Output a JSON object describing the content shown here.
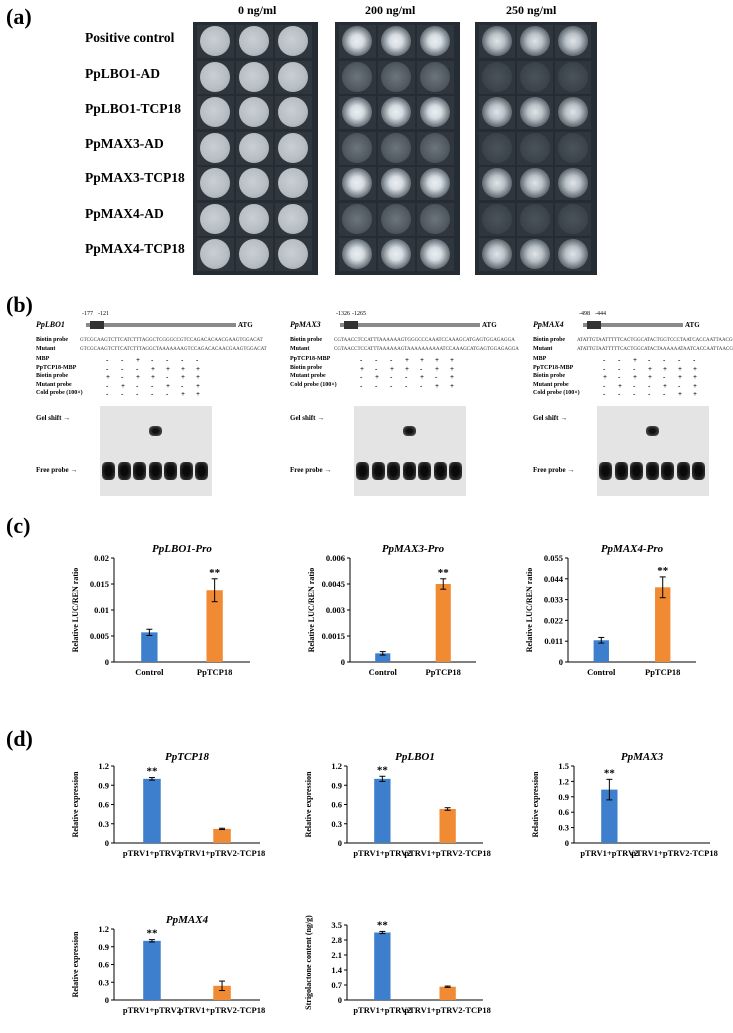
{
  "panel_labels": {
    "a": "(a)",
    "b": "(b)",
    "c": "(c)",
    "d": "(d)"
  },
  "panel_a": {
    "concentrations": [
      "0 ng/ml",
      "200 ng/ml",
      "250 ng/ml"
    ],
    "strains": [
      "Positive control",
      "PpLBO1-AD",
      "PpLBO1-TCP18",
      "PpMAX3-AD",
      "PpMAX3-TCP18",
      "PpMAX4-AD",
      "PpMAX4-TCP18"
    ]
  },
  "panel_b": {
    "blots": [
      {
        "gene": "PpLBO1",
        "pos1": "-177",
        "pos2": "-121",
        "atg": "ATG",
        "biotin_label": "Biotin probe",
        "biotin_seq": "GTCGCAAGTCTTCATCTTTAGGCTCGGGCCGTCCAGACACAACGAAGTGGACAT",
        "mutant_label": "Mutant",
        "mutant_seq": "GTCGCAAGTCTTCATCTTTAGGCTAAAAAAAGTCCAGACACAACGAAGTGGACAT",
        "rows": [
          {
            "label": "MBP",
            "signs": [
              "-",
              "-",
              "+",
              "-",
              "-",
              "-",
              "-"
            ]
          },
          {
            "label": "PpTCP18-MBP",
            "signs": [
              "-",
              "-",
              "-",
              "+",
              "+",
              "+",
              "+"
            ]
          },
          {
            "label": "Biotin probe",
            "signs": [
              "+",
              "-",
              "+",
              "+",
              "-",
              "+",
              "+"
            ]
          },
          {
            "label": "Mutant probe",
            "signs": [
              "-",
              "+",
              "-",
              "-",
              "+",
              "-",
              "+"
            ]
          },
          {
            "label": "Cold probe (100×)",
            "signs": [
              "-",
              "-",
              "-",
              "-",
              "-",
              "+",
              "+"
            ]
          }
        ],
        "gel_shift": "Gel shift",
        "free_probe": "Free probe"
      },
      {
        "gene": "PpMAX3",
        "pos1": "-1326",
        "pos2": "-1265",
        "atg": "ATG",
        "biotin_label": "Biotin probe",
        "biotin_seq": "CGTAACCTCCATTTAAAAAAGTGGGCCCAAATCCAAAGCATGAGTGGAGAGGA",
        "mutant_label": "Mutant",
        "mutant_seq": "CGTAACCTCCATTTAAAAAAGTAAAAAAAAAATCCAAAGCATGAGTGGAGAGGA",
        "rows": [
          {
            "label": "PpTCP18-MBP",
            "signs": [
              "-",
              "-",
              "-",
              "+",
              "+",
              "+",
              "+"
            ]
          },
          {
            "label": "Biotin probe",
            "signs": [
              "+",
              "-",
              "+",
              "+",
              "-",
              "+",
              "+"
            ]
          },
          {
            "label": "Mutant probe",
            "signs": [
              "-",
              "+",
              "-",
              "-",
              "+",
              "-",
              "+"
            ]
          },
          {
            "label": "Cold probe (100×)",
            "signs": [
              "-",
              "-",
              "-",
              "-",
              "-",
              "+",
              "+"
            ]
          }
        ],
        "gel_shift": "Gel shift",
        "free_probe": "Free probe"
      },
      {
        "gene": "PpMAX4",
        "pos1": "-498",
        "pos2": "-444",
        "atg": "ATG",
        "biotin_label": "Biotin probe",
        "biotin_seq": "ATATTGTAATTTTTCACTGGCATACTGGTCCCTAATCACCAATTAACGCAACAT",
        "mutant_label": "Mutant",
        "mutant_seq": "ATATTGTAATTTTTCACTGGCATACTAAAAAATAATCACCAATTAACGCAACAT",
        "rows": [
          {
            "label": "MBP",
            "signs": [
              "-",
              "-",
              "+",
              "-",
              "-",
              "-",
              "-"
            ]
          },
          {
            "label": "PpTCP18-MBP",
            "signs": [
              "-",
              "-",
              "-",
              "+",
              "+",
              "+",
              "+"
            ]
          },
          {
            "label": "Biotin probe",
            "signs": [
              "+",
              "-",
              "+",
              "+",
              "-",
              "+",
              "+"
            ]
          },
          {
            "label": "Mutant probe",
            "signs": [
              "-",
              "+",
              "-",
              "-",
              "+",
              "-",
              "+"
            ]
          },
          {
            "label": "Cold probe (100×)",
            "signs": [
              "-",
              "-",
              "-",
              "-",
              "-",
              "+",
              "+"
            ]
          }
        ],
        "gel_shift": "Gel shift",
        "free_probe": "Free probe"
      }
    ]
  },
  "chart_data": [
    {
      "panel": "c",
      "type": "bar",
      "title": "PpLBO1-Pro",
      "ylabel": "Relative LUC/REN ratio",
      "categories": [
        "Control",
        "PpTCP18"
      ],
      "values": [
        0.0057,
        0.0138
      ],
      "errors": [
        0.0006,
        0.0022
      ],
      "ylim": [
        0,
        0.02
      ],
      "yticks": [
        "0",
        "0.005",
        "0.01",
        "0.015",
        "0.02"
      ],
      "significance": [
        "",
        "**"
      ]
    },
    {
      "panel": "c",
      "type": "bar",
      "title": "PpMAX3-Pro",
      "ylabel": "Relative LUC/REN ratio",
      "categories": [
        "Control",
        "PpTCP18"
      ],
      "values": [
        0.0005,
        0.0045
      ],
      "errors": [
        0.0001,
        0.0003
      ],
      "ylim": [
        0,
        0.006
      ],
      "yticks": [
        "0",
        "0.0015",
        "0.003",
        "0.0045",
        "0.006"
      ],
      "significance": [
        "",
        "**"
      ]
    },
    {
      "panel": "c",
      "type": "bar",
      "title": "PpMAX4-Pro",
      "ylabel": "Relative LUC/REN ratio",
      "categories": [
        "Control",
        "PpTCP18"
      ],
      "values": [
        0.0115,
        0.0395
      ],
      "errors": [
        0.0015,
        0.0055
      ],
      "ylim": [
        0,
        0.055
      ],
      "yticks": [
        "0",
        "0.011",
        "0.022",
        "0.033",
        "0.044",
        "0.055"
      ],
      "significance": [
        "",
        "**"
      ]
    },
    {
      "panel": "d",
      "type": "bar",
      "title": "PpTCP18",
      "ylabel": "Relative expression",
      "categories": [
        "pTRV1+pTRV2",
        "pTRV1+pTRV2-TCP18"
      ],
      "values": [
        1.0,
        0.22
      ],
      "errors": [
        0.02,
        0.01
      ],
      "ylim": [
        0,
        1.2
      ],
      "yticks": [
        "0",
        "0.3",
        "0.6",
        "0.9",
        "1.2"
      ],
      "significance": [
        "**",
        ""
      ]
    },
    {
      "panel": "d",
      "type": "bar",
      "title": "PpLBO1",
      "ylabel": "Relative expression",
      "categories": [
        "pTRV1+pTRV2",
        "pTRV1+pTRV2-TCP18"
      ],
      "values": [
        1.0,
        0.53
      ],
      "errors": [
        0.04,
        0.02
      ],
      "ylim": [
        0,
        1.2
      ],
      "yticks": [
        "0",
        "0.3",
        "0.6",
        "0.9",
        "1.2"
      ],
      "significance": [
        "**",
        ""
      ]
    },
    {
      "panel": "d",
      "type": "bar",
      "title": "PpMAX3",
      "ylabel": "Relative expression",
      "categories": [
        "pTRV1+pTRV2",
        "pTRV1+pTRV2-TCP18"
      ],
      "values": [
        1.04,
        0.0
      ],
      "errors": [
        0.2,
        0.0
      ],
      "ylim": [
        0,
        1.5
      ],
      "yticks": [
        "0",
        "0.3",
        "0.6",
        "0.9",
        "1.2",
        "1.5"
      ],
      "significance": [
        "**",
        ""
      ]
    },
    {
      "panel": "d",
      "type": "bar",
      "title": "PpMAX4",
      "ylabel": "Relative expression",
      "categories": [
        "pTRV1+pTRV2",
        "pTRV1+pTRV2-TCP18"
      ],
      "values": [
        1.0,
        0.24
      ],
      "errors": [
        0.02,
        0.08
      ],
      "ylim": [
        0,
        1.2
      ],
      "yticks": [
        "0",
        "0.3",
        "0.6",
        "0.9",
        "1.2"
      ],
      "significance": [
        "**",
        ""
      ]
    },
    {
      "panel": "d",
      "type": "bar",
      "title": "",
      "ylabel": "Strigolactone content (ng/g)",
      "categories": [
        "pTRV1+pTRV2",
        "pTRV1+pTRV2-TCP18"
      ],
      "values": [
        3.15,
        0.62
      ],
      "errors": [
        0.05,
        0.03
      ],
      "ylim": [
        0,
        3.5
      ],
      "yticks": [
        "0",
        "0.7",
        "1.4",
        "2.1",
        "2.8",
        "3.5"
      ],
      "significance": [
        "**",
        ""
      ]
    }
  ],
  "colors": {
    "control_bar": "#3d7fcc",
    "treatment_bar": "#f08a33",
    "plate_bg": "#262c33"
  }
}
